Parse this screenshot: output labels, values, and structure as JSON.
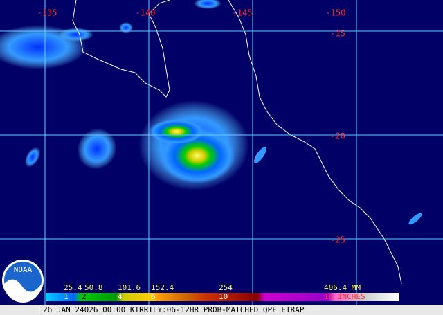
{
  "map": {
    "lon_labels": [
      "-135",
      "-140",
      "-145",
      "-150"
    ],
    "lat_labels": [
      "-15",
      "-20",
      "-25"
    ],
    "logo": "NOAA"
  },
  "legend": {
    "mm_labels": [
      "25.4",
      "50.8",
      "101.6",
      "152.4",
      "254",
      "406.4 MM"
    ],
    "inch_labels": [
      "1",
      "2",
      "4",
      "6",
      "10",
      "16 INCHES"
    ]
  },
  "footer": "26 JAN 24026 00:00 KIRRILY:06-12HR PROB-MATCHED QPF ETRAP"
}
